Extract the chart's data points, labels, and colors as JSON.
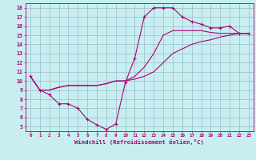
{
  "bg_color": "#c8eef0",
  "line_color": "#aa0077",
  "grid_color": "#99bbcc",
  "xlim": [
    -0.5,
    23.5
  ],
  "ylim": [
    4.5,
    18.5
  ],
  "xtick_vals": [
    0,
    1,
    2,
    3,
    4,
    5,
    6,
    7,
    8,
    9,
    10,
    11,
    12,
    13,
    14,
    15,
    16,
    17,
    18,
    19,
    20,
    21,
    22,
    23
  ],
  "ytick_vals": [
    5,
    6,
    7,
    8,
    9,
    10,
    11,
    12,
    13,
    14,
    15,
    16,
    17,
    18
  ],
  "xlabel": "Windchill (Refroidissement éolien,°C)",
  "curve1_x": [
    0,
    1,
    2,
    3,
    4,
    5,
    6,
    7,
    8,
    9,
    10,
    11,
    12,
    13,
    14,
    15,
    16,
    17,
    18,
    19,
    20,
    21,
    22,
    23
  ],
  "curve1_y": [
    10.5,
    9.0,
    8.5,
    7.5,
    7.5,
    7.0,
    5.8,
    5.2,
    4.7,
    5.3,
    9.8,
    12.5,
    17.0,
    18.0,
    18.0,
    18.0,
    17.0,
    16.5,
    16.2,
    15.8,
    15.8,
    16.0,
    15.2,
    15.2
  ],
  "curve2_x": [
    0,
    1,
    2,
    3,
    4,
    5,
    6,
    7,
    8,
    9,
    10,
    11,
    12,
    13,
    14,
    15,
    16,
    17,
    18,
    19,
    20,
    21,
    22,
    23
  ],
  "curve2_y": [
    10.5,
    9.0,
    9.0,
    9.3,
    9.5,
    9.5,
    9.5,
    9.5,
    9.7,
    10.0,
    10.0,
    10.2,
    10.5,
    11.0,
    12.0,
    13.0,
    13.5,
    14.0,
    14.3,
    14.5,
    14.8,
    15.0,
    15.2,
    15.2
  ],
  "curve3_x": [
    0,
    1,
    2,
    3,
    4,
    5,
    6,
    7,
    8,
    9,
    10,
    11,
    12,
    13,
    14,
    15,
    16,
    17,
    18,
    19,
    20,
    21,
    22,
    23
  ],
  "curve3_y": [
    10.5,
    9.0,
    9.0,
    9.3,
    9.5,
    9.5,
    9.5,
    9.5,
    9.7,
    10.0,
    10.0,
    10.5,
    11.5,
    13.0,
    15.0,
    15.5,
    15.5,
    15.5,
    15.5,
    15.3,
    15.2,
    15.2,
    15.2,
    15.2
  ]
}
